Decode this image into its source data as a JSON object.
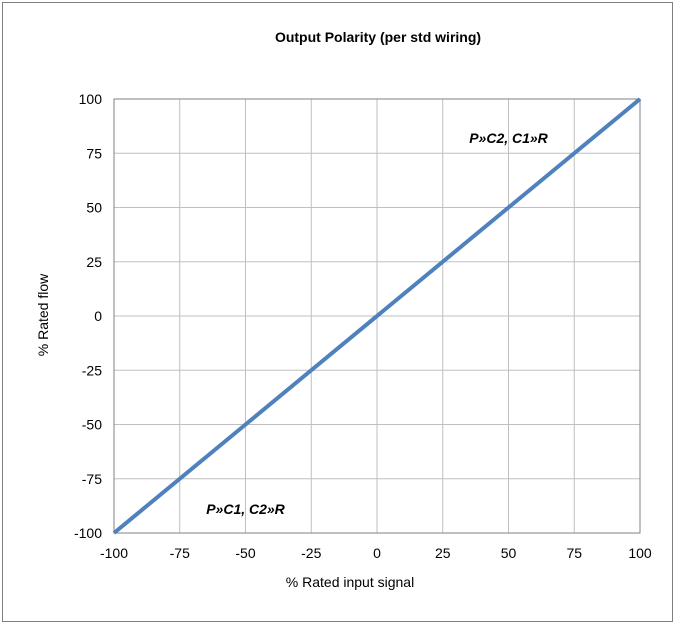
{
  "chart_data": {
    "type": "line",
    "title": "Output Polarity (per std wiring)",
    "xlabel": "% Rated input signal",
    "ylabel": "% Rated flow",
    "xlim": [
      -100,
      100
    ],
    "ylim": [
      -100,
      100
    ],
    "x_ticks": [
      "-100",
      "-75",
      "-50",
      "-25",
      "0",
      "25",
      "50",
      "75",
      "100"
    ],
    "y_ticks": [
      "100",
      "75",
      "50",
      "25",
      "0",
      "-25",
      "-50",
      "-75",
      "-100"
    ],
    "grid": true,
    "series": [
      {
        "x": [
          -100,
          100
        ],
        "y": [
          -100,
          100
        ],
        "color": "#4f81bd"
      }
    ],
    "annotations": [
      {
        "text": "P»C2, C1»R",
        "x": 50,
        "y": 82
      },
      {
        "text": "P»C1, C2»R",
        "x": -50,
        "y": -89
      }
    ]
  }
}
